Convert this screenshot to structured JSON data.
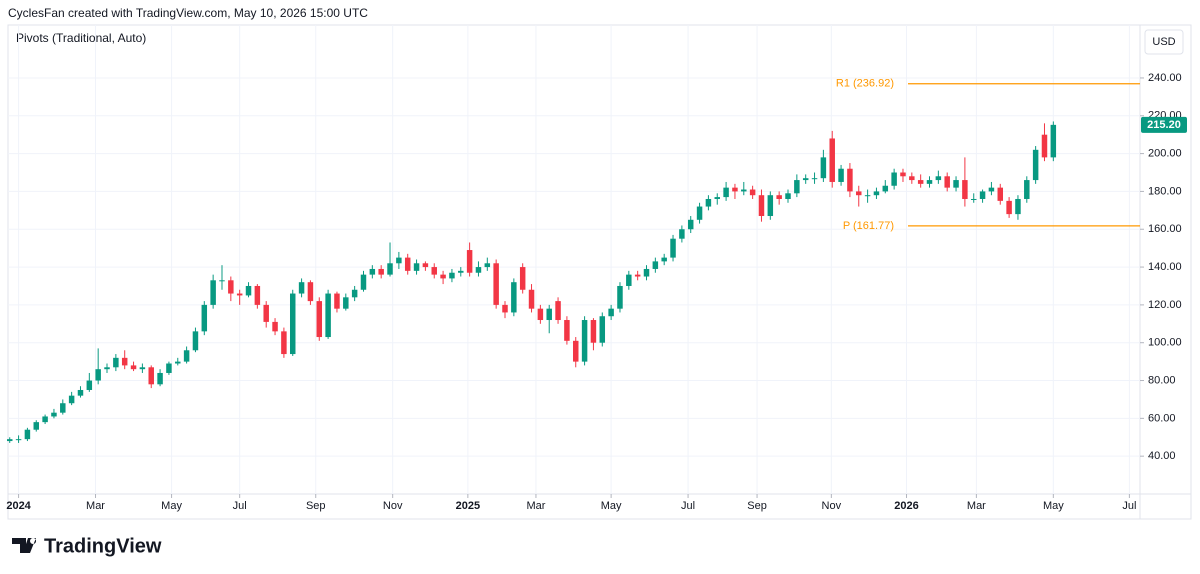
{
  "chart_data": {
    "type": "candlestick",
    "header": "CyclesFan created with TradingView.com, May 10, 2026 15:00 UTC",
    "indicator": "Pivots (Traditional, Auto)",
    "currency": "USD",
    "brand": "TradingView",
    "up_color": "#089981",
    "down_color": "#f23645",
    "pivot_color": "#ff9800",
    "grid": true,
    "open": [
      48,
      49,
      49,
      54,
      58,
      61,
      63,
      68,
      72,
      75,
      80,
      86,
      87,
      92,
      88,
      86,
      87,
      78,
      84,
      89,
      90,
      96,
      106,
      120,
      133,
      133,
      126,
      125,
      130,
      120,
      111,
      106,
      94,
      126,
      132,
      122,
      103,
      126,
      118,
      124,
      128,
      136,
      139,
      136,
      142,
      145,
      138,
      142,
      140,
      136,
      134,
      137,
      149,
      137,
      140,
      142,
      120,
      116,
      140,
      128,
      118,
      112,
      122,
      112,
      101,
      90,
      112,
      100,
      114,
      118,
      130,
      136,
      135,
      139,
      143,
      145,
      155,
      160,
      165,
      172,
      176,
      177,
      182,
      180,
      181,
      178,
      167,
      178,
      176,
      179,
      186,
      187,
      187,
      208,
      185,
      192,
      180,
      178,
      178,
      180,
      183,
      190,
      188,
      186,
      184,
      186,
      188,
      182,
      186,
      176,
      176,
      180,
      182,
      175,
      168,
      176,
      186,
      210,
      198
    ],
    "high": [
      50,
      51,
      55,
      59,
      62,
      65,
      70,
      74,
      77,
      84,
      97,
      89,
      94,
      96,
      90,
      89,
      88,
      86,
      90,
      92,
      98,
      108,
      122,
      136,
      141,
      135,
      128,
      132,
      131,
      122,
      113,
      108,
      128,
      134,
      133,
      124,
      128,
      127,
      126,
      130,
      138,
      141,
      141,
      153,
      148,
      147,
      144,
      143,
      142,
      138,
      139,
      140,
      153,
      143,
      145,
      144,
      122,
      134,
      142,
      131,
      120,
      120,
      124,
      114,
      103,
      114,
      113,
      116,
      120,
      132,
      138,
      138,
      141,
      145,
      147,
      157,
      162,
      167,
      174,
      178,
      179,
      185,
      184,
      185,
      183,
      181,
      180,
      180,
      181,
      189,
      189,
      190,
      202,
      212,
      194,
      195,
      183,
      181,
      182,
      186,
      192,
      192,
      190,
      189,
      188,
      191,
      190,
      188,
      198,
      179,
      181,
      185,
      184,
      177,
      178,
      188,
      204,
      216,
      217
    ],
    "low": [
      47,
      47,
      48,
      53,
      57,
      60,
      62,
      67,
      71,
      74,
      78,
      84,
      85,
      86,
      85,
      84,
      76,
      77,
      83,
      88,
      89,
      95,
      104,
      118,
      128,
      122,
      120,
      124,
      118,
      108,
      104,
      92,
      93,
      124,
      120,
      101,
      102,
      116,
      117,
      122,
      127,
      134,
      134,
      135,
      139,
      136,
      136,
      138,
      134,
      131,
      132,
      135,
      135,
      135,
      138,
      118,
      113,
      114,
      126,
      116,
      110,
      105,
      110,
      99,
      87,
      88,
      96,
      98,
      112,
      116,
      128,
      133,
      133,
      137,
      141,
      143,
      153,
      158,
      163,
      170,
      173,
      175,
      176,
      178,
      176,
      164,
      165,
      173,
      174,
      177,
      184,
      184,
      185,
      182,
      183,
      177,
      172,
      174,
      176,
      179,
      181,
      185,
      184,
      182,
      182,
      184,
      180,
      180,
      172,
      174,
      174,
      178,
      173,
      166,
      165,
      174,
      184,
      196,
      196
    ],
    "close": [
      49,
      49,
      54,
      58,
      61,
      63,
      68,
      72,
      75,
      80,
      86,
      87,
      92,
      88,
      86,
      87,
      78,
      84,
      89,
      90,
      96,
      106,
      120,
      133,
      133,
      126,
      125,
      130,
      120,
      111,
      106,
      94,
      126,
      132,
      122,
      103,
      126,
      118,
      124,
      128,
      136,
      139,
      136,
      142,
      145,
      138,
      142,
      140,
      136,
      134,
      137,
      138,
      137,
      140,
      142,
      120,
      116,
      132,
      128,
      118,
      112,
      118,
      112,
      101,
      90,
      112,
      100,
      114,
      118,
      130,
      136,
      135,
      139,
      143,
      145,
      155,
      160,
      165,
      172,
      176,
      177,
      182,
      180,
      181,
      178,
      167,
      178,
      176,
      179,
      186,
      187,
      187,
      198,
      185,
      192,
      180,
      178,
      178,
      180,
      183,
      190,
      188,
      186,
      184,
      186,
      188,
      182,
      186,
      176,
      176,
      180,
      182,
      175,
      168,
      176,
      186,
      202,
      198,
      215.2
    ],
    "last_price": {
      "value": 215.2,
      "label": "215.20"
    },
    "pivots": [
      {
        "value": 236.92,
        "label": "R1 (236.92)"
      },
      {
        "value": 161.77,
        "label": "P (161.77)"
      }
    ],
    "xlim": [
      -1.1,
      127.8
    ],
    "xticks": [
      {
        "value": 1,
        "label": "2024"
      },
      {
        "value": 9.7,
        "label": "Mar"
      },
      {
        "value": 18.3,
        "label": "May"
      },
      {
        "value": 26,
        "label": "Jul"
      },
      {
        "value": 34.6,
        "label": "Sep"
      },
      {
        "value": 43.3,
        "label": "Nov"
      },
      {
        "value": 51.8,
        "label": "2025"
      },
      {
        "value": 59.5,
        "label": "Mar"
      },
      {
        "value": 68,
        "label": "May"
      },
      {
        "value": 76.7,
        "label": "Jul"
      },
      {
        "value": 84.5,
        "label": "Sep"
      },
      {
        "value": 92.9,
        "label": "Nov"
      },
      {
        "value": 101.4,
        "label": "2026"
      },
      {
        "value": 109.3,
        "label": "Mar"
      },
      {
        "value": 118,
        "label": "May"
      },
      {
        "value": 126.6,
        "label": "Jul"
      }
    ],
    "ylim": [
      20,
      268
    ],
    "yticks": [
      {
        "value": 40,
        "label": "40.00"
      },
      {
        "value": 60,
        "label": "60.00"
      },
      {
        "value": 80,
        "label": "80.00"
      },
      {
        "value": 100,
        "label": "100.00"
      },
      {
        "value": 120,
        "label": "120.00"
      },
      {
        "value": 140,
        "label": "140.00"
      },
      {
        "value": 160,
        "label": "160.00"
      },
      {
        "value": 180,
        "label": "180.00"
      },
      {
        "value": 200,
        "label": "200.00"
      },
      {
        "value": 220,
        "label": "220.00"
      },
      {
        "value": 240,
        "label": "240.00"
      }
    ]
  }
}
